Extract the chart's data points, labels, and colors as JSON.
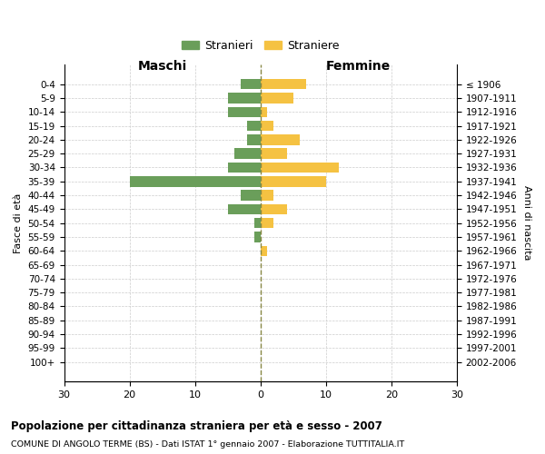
{
  "age_groups": [
    "0-4",
    "5-9",
    "10-14",
    "15-19",
    "20-24",
    "25-29",
    "30-34",
    "35-39",
    "40-44",
    "45-49",
    "50-54",
    "55-59",
    "60-64",
    "65-69",
    "70-74",
    "75-79",
    "80-84",
    "85-89",
    "90-94",
    "95-99",
    "100+"
  ],
  "birth_years": [
    "2002-2006",
    "1997-2001",
    "1992-1996",
    "1987-1991",
    "1982-1986",
    "1977-1981",
    "1972-1976",
    "1967-1971",
    "1962-1966",
    "1957-1961",
    "1952-1956",
    "1947-1951",
    "1942-1946",
    "1937-1941",
    "1932-1936",
    "1927-1931",
    "1922-1926",
    "1917-1921",
    "1912-1916",
    "1907-1911",
    "≤ 1906"
  ],
  "maschi": [
    3,
    5,
    5,
    2,
    2,
    4,
    5,
    20,
    3,
    5,
    1,
    1,
    0,
    0,
    0,
    0,
    0,
    0,
    0,
    0,
    0
  ],
  "femmine": [
    7,
    5,
    1,
    2,
    6,
    4,
    12,
    10,
    2,
    4,
    2,
    0,
    1,
    0,
    0,
    0,
    0,
    0,
    0,
    0,
    0
  ],
  "male_color": "#6a9e5a",
  "female_color": "#f5c242",
  "title": "Popolazione per cittadinanza straniera per età e sesso - 2007",
  "subtitle": "COMUNE DI ANGOLO TERME (BS) - Dati ISTAT 1° gennaio 2007 - Elaborazione TUTTITALIA.IT",
  "xlabel_left": "Maschi",
  "xlabel_right": "Femmine",
  "ylabel_left": "Fasce di età",
  "ylabel_right": "Anni di nascita",
  "legend_male": "Stranieri",
  "legend_female": "Straniere",
  "xlim": 30,
  "bg_color": "#ffffff",
  "grid_color": "#cccccc"
}
